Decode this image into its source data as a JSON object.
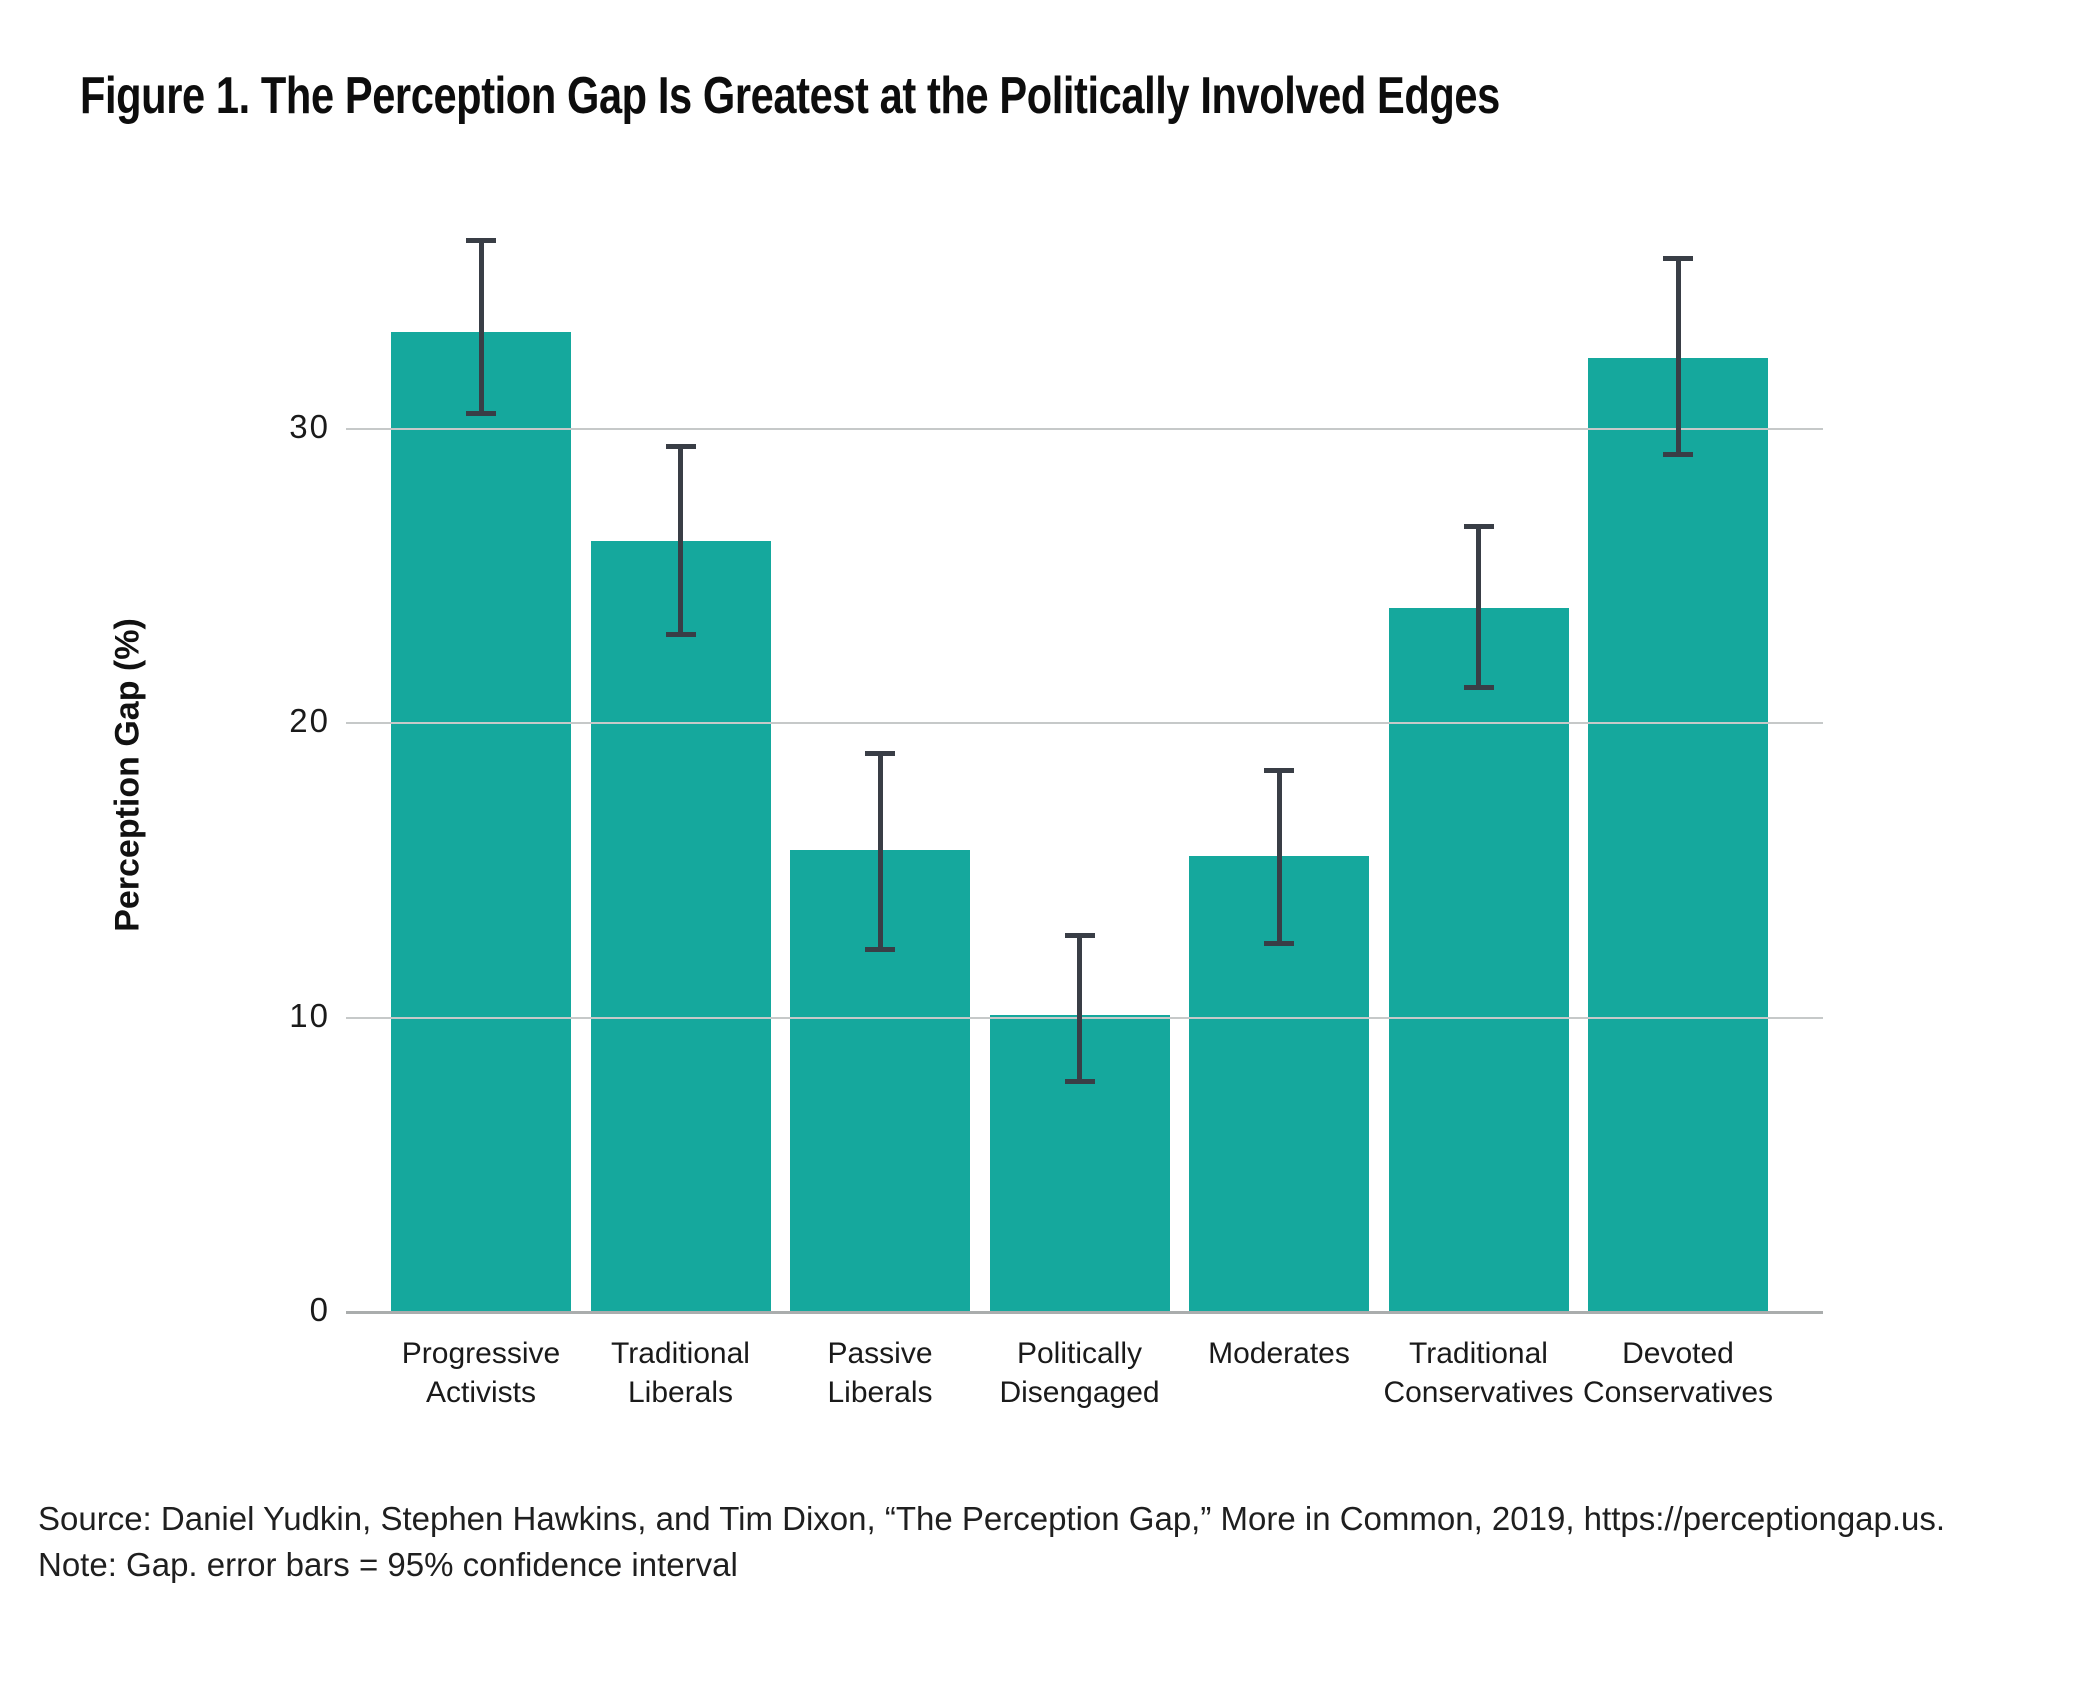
{
  "source_line": "Source: Daniel Yudkin, Stephen Hawkins, and Tim Dixon, “The Perception Gap,” More in Common, 2019, https://perceptiongap.us.",
  "note_line": "Note: Gap. error bars = 95% confidence interval",
  "chart_data": {
    "type": "bar",
    "title": "Figure 1. The Perception Gap Is Greatest at the Politically Involved Edges",
    "xlabel": "",
    "ylabel": "Perception Gap (%)",
    "ylim": [
      0,
      37.5
    ],
    "yticks": [
      0,
      10,
      20,
      30
    ],
    "grid": "horizontal gridlines at 10, 20, 30 drawn over the bars",
    "legend": "none",
    "categories": [
      "Progressive Activists",
      "Traditional Liberals",
      "Passive Liberals",
      "Politically Disengaged",
      "Moderates",
      "Traditional Conservatives",
      "Devoted Conservatives"
    ],
    "values": [
      33.3,
      26.2,
      15.7,
      10.1,
      15.5,
      23.9,
      32.4
    ],
    "ci_low": [
      30.5,
      23.0,
      12.3,
      7.8,
      12.5,
      21.2,
      29.1
    ],
    "ci_high": [
      36.4,
      29.4,
      19.0,
      12.8,
      18.4,
      26.7,
      35.8
    ],
    "error_bars": "95% confidence interval",
    "bar_color": "#15a89d",
    "error_bar_color": "#393e46",
    "gridline_color": "#c6c9c9",
    "axis_line_color": "#aaadad",
    "text_color": "#1a1a1a"
  }
}
